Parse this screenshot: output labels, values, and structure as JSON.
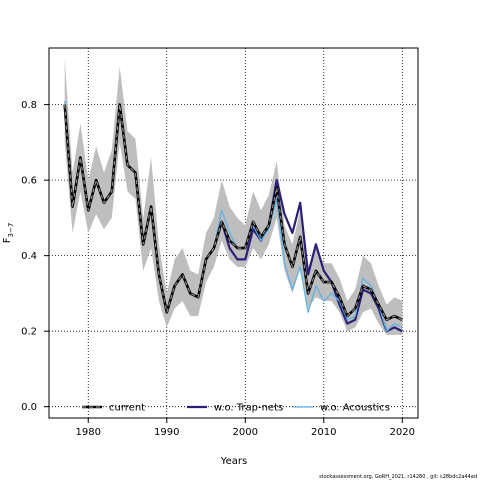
{
  "chart_data": {
    "type": "line",
    "xlabel": "Years",
    "ylabel_base": "F",
    "ylabel_sub": "3−7",
    "xlim": [
      1975,
      2022
    ],
    "ylim": [
      -0.03,
      0.95
    ],
    "xticks": [
      1980,
      1990,
      2000,
      2010,
      2020
    ],
    "yticks": [
      0.0,
      0.2,
      0.4,
      0.6,
      0.8
    ],
    "grid": true,
    "legend_placement": "bottom",
    "x": [
      1977,
      1978,
      1979,
      1980,
      1981,
      1982,
      1983,
      1984,
      1985,
      1986,
      1987,
      1988,
      1989,
      1990,
      1991,
      1992,
      1993,
      1994,
      1995,
      1996,
      1997,
      1998,
      1999,
      2000,
      2001,
      2002,
      2003,
      2004,
      2005,
      2006,
      2007,
      2008,
      2009,
      2010,
      2011,
      2012,
      2013,
      2014,
      2015,
      2016,
      2017,
      2018,
      2019,
      2020
    ],
    "confidence_band": {
      "lower": [
        0.7,
        0.46,
        0.57,
        0.46,
        0.51,
        0.47,
        0.5,
        0.7,
        0.57,
        0.55,
        0.36,
        0.42,
        0.28,
        0.21,
        0.26,
        0.28,
        0.24,
        0.24,
        0.33,
        0.37,
        0.44,
        0.39,
        0.37,
        0.37,
        0.42,
        0.39,
        0.43,
        0.5,
        0.36,
        0.3,
        0.37,
        0.26,
        0.29,
        0.28,
        0.28,
        0.25,
        0.2,
        0.21,
        0.25,
        0.26,
        0.22,
        0.19,
        0.19,
        0.19
      ],
      "upper": [
        0.92,
        0.62,
        0.75,
        0.6,
        0.69,
        0.62,
        0.68,
        0.9,
        0.73,
        0.71,
        0.5,
        0.66,
        0.43,
        0.3,
        0.39,
        0.42,
        0.36,
        0.35,
        0.46,
        0.5,
        0.6,
        0.53,
        0.5,
        0.48,
        0.57,
        0.52,
        0.56,
        0.65,
        0.48,
        0.43,
        0.52,
        0.37,
        0.42,
        0.38,
        0.38,
        0.34,
        0.28,
        0.31,
        0.4,
        0.38,
        0.32,
        0.27,
        0.29,
        0.28
      ],
      "color": "#bebebe"
    },
    "series": [
      {
        "name": "current",
        "color": "#000000",
        "dashed": true,
        "values": [
          0.8,
          0.53,
          0.66,
          0.52,
          0.6,
          0.54,
          0.57,
          0.8,
          0.64,
          0.62,
          0.43,
          0.53,
          0.35,
          0.25,
          0.32,
          0.35,
          0.3,
          0.29,
          0.39,
          0.42,
          0.49,
          0.44,
          0.42,
          0.42,
          0.49,
          0.45,
          0.48,
          0.58,
          0.43,
          0.37,
          0.45,
          0.3,
          0.36,
          0.33,
          0.33,
          0.29,
          0.24,
          0.26,
          0.32,
          0.31,
          0.27,
          0.23,
          0.24,
          0.23
        ]
      },
      {
        "name": "w.o. Trap-nets",
        "color": "#2c1f7a",
        "dashed": false,
        "values": [
          0.8,
          0.53,
          0.66,
          0.52,
          0.6,
          0.54,
          0.57,
          0.8,
          0.64,
          0.62,
          0.43,
          0.53,
          0.35,
          0.25,
          0.32,
          0.35,
          0.3,
          0.29,
          0.39,
          0.42,
          0.49,
          0.42,
          0.39,
          0.39,
          0.47,
          0.44,
          0.48,
          0.6,
          0.51,
          0.46,
          0.54,
          0.35,
          0.43,
          0.36,
          0.33,
          0.27,
          0.22,
          0.23,
          0.31,
          0.3,
          0.26,
          0.2,
          0.21,
          0.2
        ]
      },
      {
        "name": "w.o. Acoustics",
        "color": "#5fb3e6",
        "dashed": false,
        "values": [
          0.81,
          0.53,
          0.66,
          0.52,
          0.6,
          0.54,
          0.57,
          0.8,
          0.64,
          0.62,
          0.43,
          0.53,
          0.35,
          0.25,
          0.32,
          0.35,
          0.3,
          0.29,
          0.39,
          0.42,
          0.52,
          0.46,
          0.42,
          0.42,
          0.48,
          0.44,
          0.47,
          0.55,
          0.38,
          0.31,
          0.37,
          0.25,
          0.32,
          0.28,
          0.3,
          0.28,
          0.23,
          0.24,
          0.34,
          0.32,
          0.27,
          0.2,
          0.22,
          0.21
        ]
      }
    ]
  },
  "footer_text": "stockassessment.org, GoRH_2021, r14280 , git: c28bdc2a44ad"
}
